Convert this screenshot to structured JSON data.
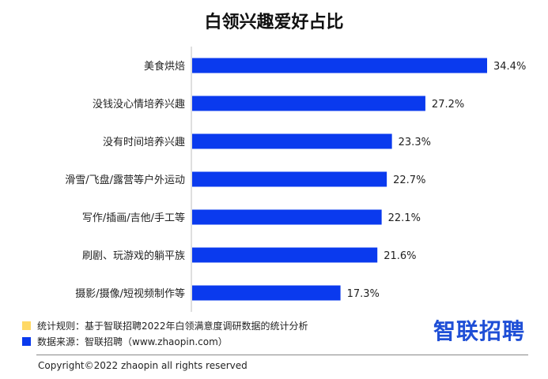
{
  "chart_data": {
    "type": "bar",
    "orientation": "horizontal",
    "title": "白领兴趣爱好占比",
    "categories": [
      "美食烘焙",
      "没钱没心情培养兴趣",
      "没有时间培养兴趣",
      "滑雪/飞盘/露营等户外运动",
      "写作/插画/吉他/手工等",
      "刷剧、玩游戏的躺平族",
      "摄影/摄像/短视频制作等"
    ],
    "values": [
      34.4,
      27.2,
      23.3,
      22.7,
      22.1,
      21.6,
      17.3
    ],
    "value_labels": [
      "34.4%",
      "27.2%",
      "23.3%",
      "22.7%",
      "22.1%",
      "21.6%",
      "17.3%"
    ],
    "unit": "%",
    "xlim": [
      0,
      34.4
    ],
    "grid": false,
    "bar_color": "#0a3aee"
  },
  "notes": {
    "rule": {
      "color": "#ffd966",
      "text": "统计规则：基于智联招聘2022年白领满意度调研数据的统计分析"
    },
    "source": {
      "color": "#0a3aee",
      "text": "数据来源：智联招聘（www.zhaopin.com）"
    }
  },
  "brand": {
    "text": "智联招聘",
    "color": "#1f4fd6"
  },
  "footer": {
    "copyright": "Copyright©2022 zhaopin all rights reserved"
  }
}
